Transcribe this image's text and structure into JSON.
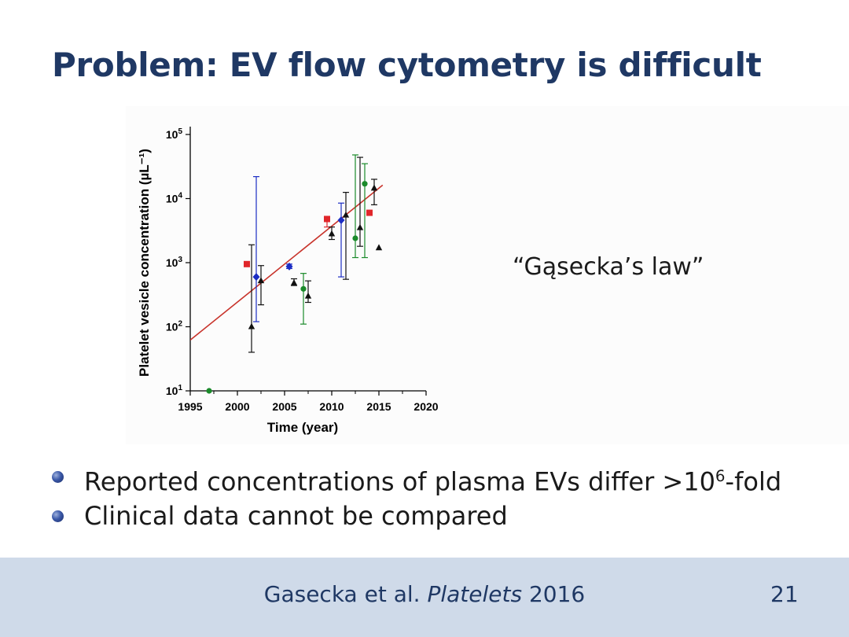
{
  "slide": {
    "title": "Problem: EV flow cytometry is difficult",
    "law_quote": "“Gąsecka’s law”",
    "bullets": [
      {
        "text": "Reported concentrations of plasma EVs differ >10",
        "sup": "6",
        "suffix": "-fold"
      },
      {
        "text": "Clinical data cannot be compared",
        "sup": "",
        "suffix": ""
      }
    ],
    "citation": {
      "authors": "Gasecka et al.",
      "journal": "Platelets",
      "year": "2016"
    },
    "page_number": "21"
  },
  "colors": {
    "title": "#1f3864",
    "footer_bg": "#cfdae9",
    "trend": "#c8332b",
    "red": "#e0262a",
    "blue": "#1c2dc4",
    "green": "#1a8a2a",
    "black": "#111111"
  },
  "chart_data": {
    "type": "scatter",
    "xlabel": "Time (year)",
    "ylabel": "Platelet vesicle concentration (µL⁻¹)",
    "xlim": [
      1995,
      2020
    ],
    "xticks": [
      1995,
      2000,
      2005,
      2010,
      2015,
      2020
    ],
    "ylim": [
      10,
      100000
    ],
    "yscale": "log",
    "yticks": [
      {
        "value": 10,
        "base": "10",
        "exp": "1"
      },
      {
        "value": 100,
        "base": "10",
        "exp": "2"
      },
      {
        "value": 1000,
        "base": "10",
        "exp": "3"
      },
      {
        "value": 10000,
        "base": "10",
        "exp": "4"
      },
      {
        "value": 100000,
        "base": "10",
        "exp": "5"
      }
    ],
    "trend_line": {
      "x": [
        1995,
        2015.4
      ],
      "y": [
        62,
        16200
      ]
    },
    "points": [
      {
        "x": 1997,
        "y": 10,
        "marker": "circle",
        "color": "green"
      },
      {
        "x": 2001,
        "y": 950,
        "marker": "square",
        "color": "red",
        "err": [
          880,
          1030
        ]
      },
      {
        "x": 2001.5,
        "y": 100,
        "marker": "triangle",
        "color": "black",
        "err": [
          40,
          1900
        ]
      },
      {
        "x": 2002,
        "y": 600,
        "marker": "diamond",
        "color": "blue",
        "err": [
          120,
          22000
        ]
      },
      {
        "x": 2002.5,
        "y": 520,
        "marker": "triangle",
        "color": "black",
        "err": [
          220,
          900
        ]
      },
      {
        "x": 2005.5,
        "y": 870,
        "marker": "diamond",
        "color": "blue",
        "err": [
          810,
          950
        ]
      },
      {
        "x": 2006,
        "y": 480,
        "marker": "triangle",
        "color": "black",
        "err": [
          440,
          560
        ]
      },
      {
        "x": 2007,
        "y": 390,
        "marker": "circle",
        "color": "green",
        "err": [
          110,
          680
        ]
      },
      {
        "x": 2007.5,
        "y": 300,
        "marker": "triangle",
        "color": "black",
        "err": [
          240,
          520
        ]
      },
      {
        "x": 2009.5,
        "y": 4800,
        "marker": "square",
        "color": "red",
        "err": [
          3600,
          5200
        ]
      },
      {
        "x": 2010,
        "y": 2800,
        "marker": "triangle",
        "color": "black",
        "err": [
          2300,
          3600
        ]
      },
      {
        "x": 2011,
        "y": 4600,
        "marker": "diamond",
        "color": "blue",
        "err": [
          600,
          8500
        ]
      },
      {
        "x": 2011.5,
        "y": 5500,
        "marker": "triangle",
        "color": "black",
        "err": [
          550,
          12500
        ]
      },
      {
        "x": 2012.5,
        "y": 2400,
        "marker": "circle",
        "color": "green",
        "err": [
          1200,
          48000
        ]
      },
      {
        "x": 2013,
        "y": 3500,
        "marker": "triangle",
        "color": "black",
        "err": [
          1800,
          44000
        ]
      },
      {
        "x": 2013.5,
        "y": 17000,
        "marker": "circle",
        "color": "green",
        "err": [
          1200,
          35000
        ]
      },
      {
        "x": 2014,
        "y": 6000,
        "marker": "square",
        "color": "red"
      },
      {
        "x": 2014.5,
        "y": 14500,
        "marker": "triangle",
        "color": "black",
        "err": [
          8000,
          20000
        ]
      },
      {
        "x": 2015,
        "y": 1700,
        "marker": "triangle",
        "color": "black"
      }
    ]
  }
}
